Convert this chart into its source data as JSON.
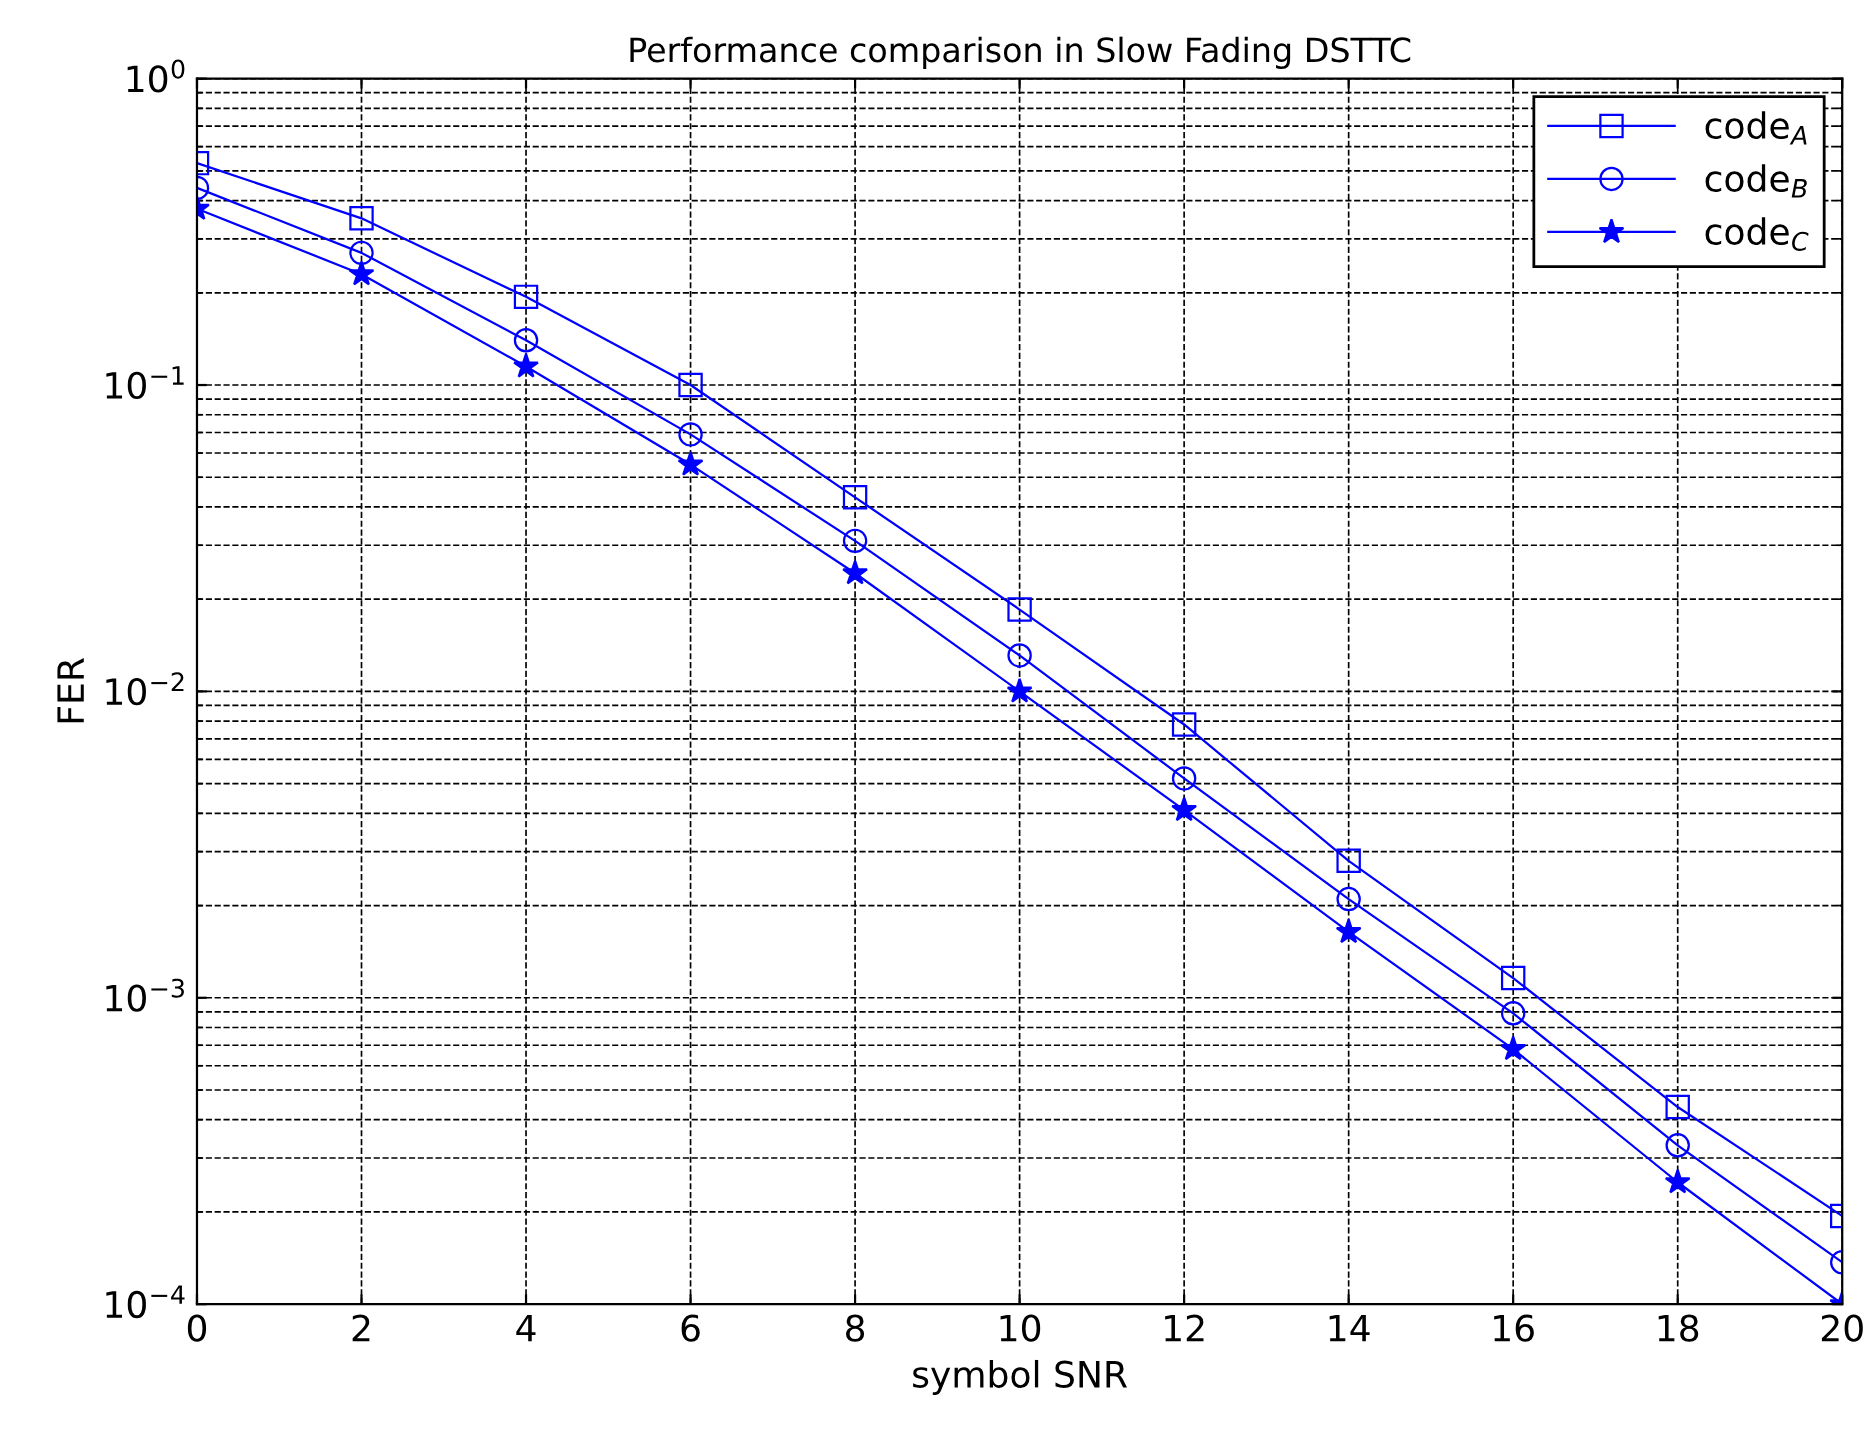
{
  "chart_data": {
    "type": "line",
    "title": "Performance comparison in Slow Fading DSTTC",
    "xlabel": "symbol SNR",
    "ylabel": "FER",
    "log": "y",
    "grid": true,
    "legend": "top right",
    "line_style": "solid",
    "xlim": [
      0,
      20
    ],
    "xticks": [
      0,
      2,
      4,
      6,
      8,
      10,
      12,
      14,
      16,
      18,
      20
    ],
    "ylim": [
      0.0001,
      1
    ],
    "yticks": [
      {
        "value": 0.0001,
        "label": "10$^{−4}$"
      },
      {
        "value": 0.001,
        "label": "10$^{−3}$"
      },
      {
        "value": 0.01,
        "label": "10$^{−2}$"
      },
      {
        "value": 0.1,
        "label": "10$^{−1}$"
      },
      {
        "value": 1,
        "label": "10$^{0}$"
      }
    ],
    "x": [
      0,
      2,
      4,
      6,
      8,
      10,
      12,
      14,
      16,
      18,
      20
    ],
    "series": [
      {
        "name": "code$_{A}$",
        "color": "#0000ff",
        "marker": "square",
        "values": [
          0.53,
          0.35,
          0.194,
          0.1,
          0.043,
          0.0185,
          0.0078,
          0.0028,
          0.00116,
          0.00044,
          0.000194
        ]
      },
      {
        "name": "code$_{B}$",
        "color": "#0000ff",
        "marker": "circle",
        "values": [
          0.44,
          0.27,
          0.14,
          0.069,
          0.031,
          0.0131,
          0.0052,
          0.0021,
          0.00089,
          0.00033,
          0.000137
        ]
      },
      {
        "name": "code$_{C}$",
        "color": "#0000ff",
        "marker": "star",
        "values": [
          0.376,
          0.23,
          0.115,
          0.055,
          0.0243,
          0.01,
          0.0041,
          0.00164,
          0.00068,
          0.00025,
          0.0001
        ]
      }
    ]
  }
}
